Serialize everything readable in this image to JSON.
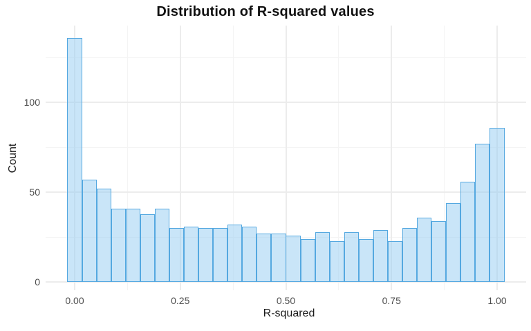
{
  "figure": {
    "background": "#ffffff"
  },
  "chart_data": {
    "type": "bar",
    "subtype": "histogram",
    "title": "Distribution of R-squared values",
    "xlabel": "R-squared",
    "ylabel": "Count",
    "x_tick_labels": [
      "0.00",
      "0.25",
      "0.50",
      "0.75",
      "1.00"
    ],
    "x_tick_values": [
      0,
      0.25,
      0.5,
      0.75,
      1.0
    ],
    "x_minor_values": [
      0.125,
      0.375,
      0.625,
      0.875
    ],
    "y_tick_labels": [
      "0",
      "50",
      "100"
    ],
    "y_tick_values": [
      0,
      50,
      100
    ],
    "y_minor_values": [
      25,
      75,
      125
    ],
    "xlim": [
      -0.069,
      1.069
    ],
    "ylim": [
      0,
      143
    ],
    "grid": true,
    "legend": false,
    "bins": 30,
    "binwidth": 0.0345,
    "bin_centers": [
      0.0,
      0.0345,
      0.069,
      0.1034,
      0.1379,
      0.1724,
      0.2069,
      0.2414,
      0.2759,
      0.3103,
      0.3448,
      0.3793,
      0.4138,
      0.4483,
      0.4828,
      0.5172,
      0.5517,
      0.5862,
      0.6207,
      0.6552,
      0.6897,
      0.7241,
      0.7586,
      0.7931,
      0.8276,
      0.8621,
      0.8966,
      0.931,
      0.9655,
      1.0
    ],
    "counts": [
      136,
      57,
      52,
      41,
      41,
      38,
      41,
      30,
      31,
      30,
      30,
      32,
      31,
      27,
      27,
      26,
      24,
      28,
      23,
      28,
      24,
      29,
      23,
      30,
      36,
      34,
      44,
      56,
      77,
      86
    ],
    "colors": {
      "bar_fill": "rgba(147,204,241,0.5)",
      "bar_fill_flat": "#c9e6f8",
      "bar_stroke": "#54a8e0",
      "grid_major": "#ececec",
      "grid_minor": "#f4f4f4",
      "tick_label": "#4d4d4d",
      "axis_title": "#1a1a1a",
      "title": "#111111"
    }
  }
}
